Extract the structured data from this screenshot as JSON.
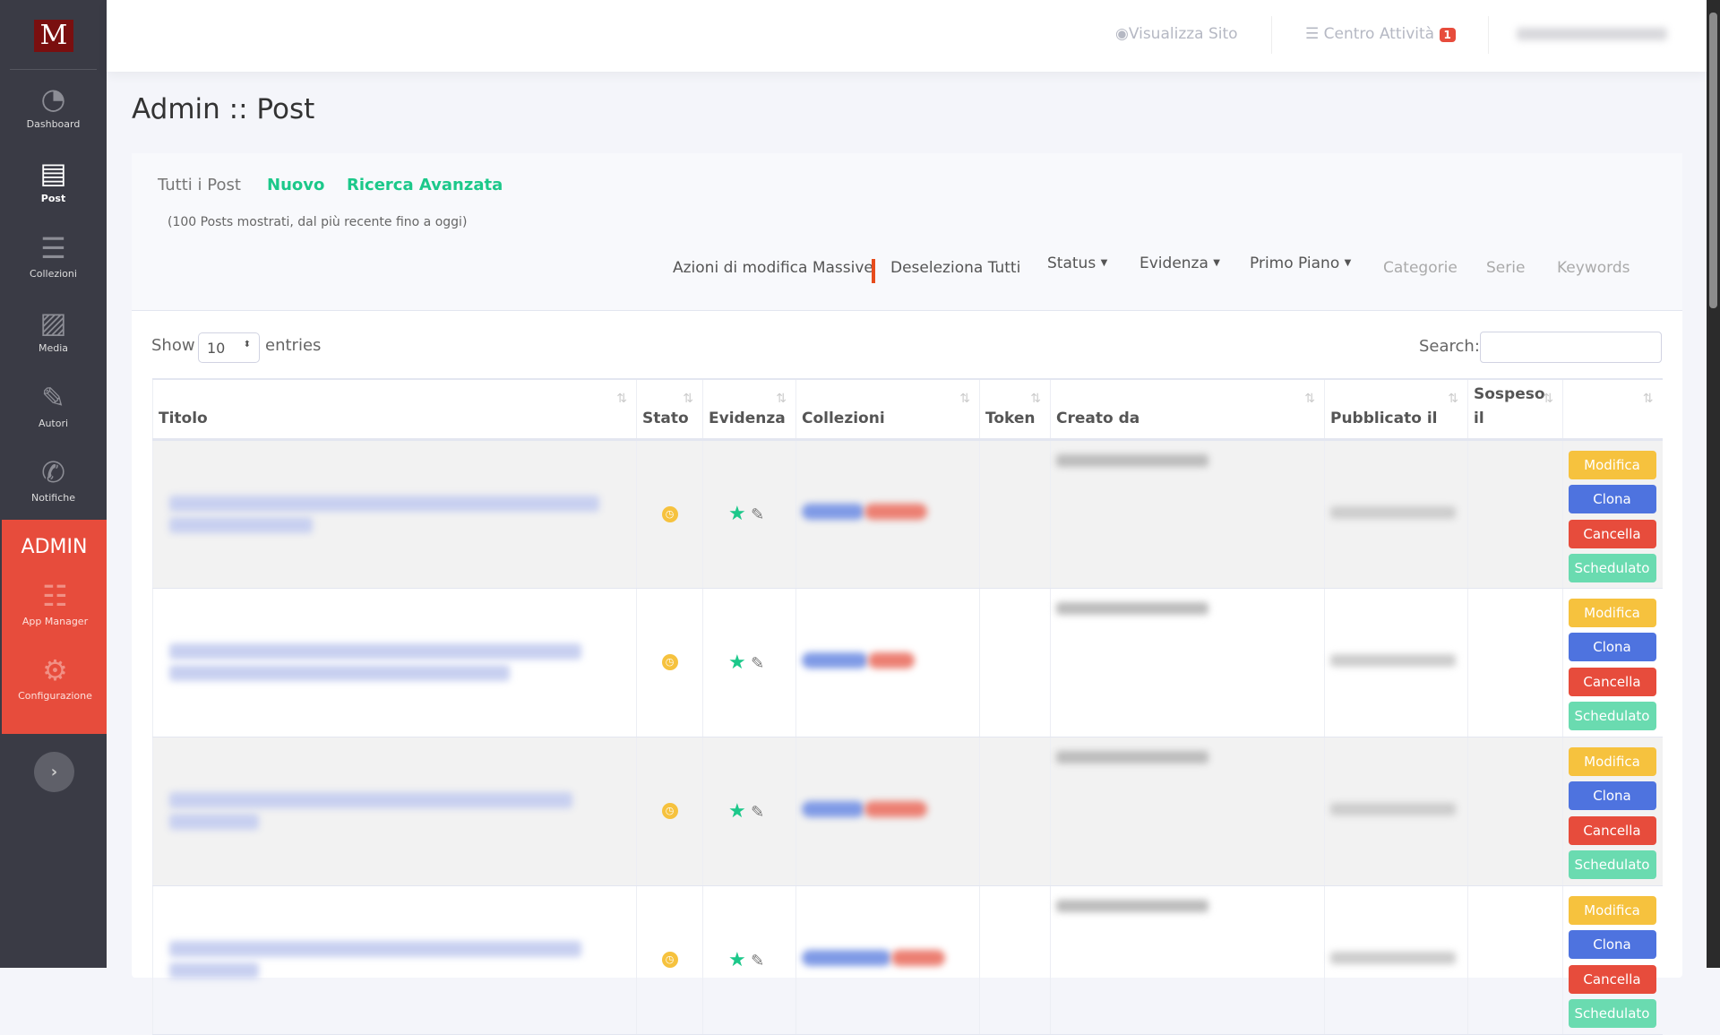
{
  "sidebar": {
    "logo": "M",
    "items": [
      {
        "label": "Dashboard",
        "icon": "gauge-icon"
      },
      {
        "label": "Post",
        "icon": "newspaper-icon"
      },
      {
        "label": "Collezioni",
        "icon": "list-icon"
      },
      {
        "label": "Media",
        "icon": "images-icon"
      },
      {
        "label": "Autori",
        "icon": "feather-icon"
      },
      {
        "label": "Notifiche",
        "icon": "phone-icon"
      }
    ],
    "admin": {
      "title": "ADMIN",
      "items": [
        {
          "label": "App Manager",
          "icon": "sliders-icon"
        },
        {
          "label": "Configurazione",
          "icon": "cogs-icon"
        }
      ]
    },
    "expand": "›"
  },
  "topbar": {
    "view_site": "Visualizza Sito",
    "activity": "Centro Attività",
    "activity_count": "1"
  },
  "page": {
    "title": "Admin :: Post"
  },
  "tabs": {
    "all": "Tutti i Post",
    "new": "Nuovo",
    "advanced": "Ricerca Avanzata"
  },
  "subtitle": "(100 Posts mostrati, dal più recente fino a oggi)",
  "actions": {
    "bulk": "Azioni di modifica Massive",
    "deselect": "Deseleziona Tutti",
    "status": "Status",
    "evidenza": "Evidenza",
    "primo_piano": "Primo Piano",
    "categorie": "Categorie",
    "serie": "Serie",
    "keywords": "Keywords"
  },
  "table_controls": {
    "show": "Show",
    "entries_value": "10",
    "entries": "entries",
    "search_label": "Search:",
    "search_value": ""
  },
  "columns": [
    "Titolo",
    "Stato",
    "Evidenza",
    "Collezioni",
    "Token",
    "Creato da",
    "Pubblicato il",
    "Sospeso il",
    ""
  ],
  "row_buttons": {
    "edit": "Modifica",
    "clone": "Clona",
    "delete": "Cancella",
    "scheduled": "Schedulato"
  },
  "colors": {
    "accent": "#1cc88a",
    "danger": "#e74c3c",
    "warning": "#f6c23e",
    "primary": "#4e73df",
    "success": "#6adbb0",
    "sidebar": "#3a3b45"
  }
}
